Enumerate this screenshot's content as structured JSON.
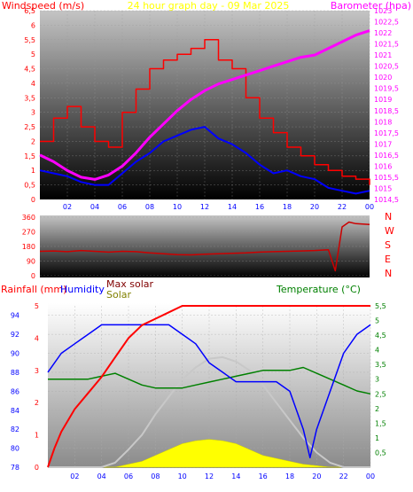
{
  "chart_data": [
    {
      "type": "line",
      "title": "24 hour graph day - 09 Mar 2025",
      "left_axis_label": "Windspeed (m/s)",
      "right_axis_label": "Barometer (hpa)",
      "left_ticks": [
        "0",
        "0,5",
        "1",
        "1,5",
        "2",
        "2,5",
        "3",
        "3,5",
        "4",
        "4,5",
        "5",
        "5,5",
        "6",
        "6,5"
      ],
      "right_ticks": [
        "1014,5",
        "1015",
        "1015,5",
        "1016",
        "1016,5",
        "1017",
        "1017,5",
        "1018",
        "1018,5",
        "1019",
        "1019,5",
        "1020",
        "1020,5",
        "1021",
        "1021,5",
        "1022",
        "1022,5",
        "1023"
      ],
      "x_ticks": [
        "02",
        "04",
        "06",
        "08",
        "10",
        "12",
        "14",
        "16",
        "18",
        "20",
        "22",
        "00"
      ],
      "ylim_left": [
        0,
        6.5
      ],
      "ylim_right": [
        1014.5,
        1023
      ],
      "colors": {
        "gust": "#ff0000",
        "wind": "#0000ff",
        "barometer": "#ff00ff"
      },
      "series": [
        {
          "axis": "left",
          "x": [
            0,
            1,
            2,
            3,
            4,
            5,
            6,
            7,
            8,
            9,
            10,
            11,
            12,
            13,
            14,
            15,
            16,
            17,
            18,
            19,
            20,
            21,
            22,
            23,
            24
          ],
          "values": [
            1.0,
            0.9,
            0.8,
            0.6,
            0.5,
            0.5,
            0.9,
            1.3,
            1.6,
            2.0,
            2.2,
            2.4,
            2.5,
            2.1,
            1.9,
            1.6,
            1.2,
            0.9,
            1.0,
            0.8,
            0.7,
            0.4,
            0.3,
            0.2,
            0.3
          ]
        },
        {
          "axis": "left",
          "x": [
            0,
            1,
            2,
            3,
            4,
            5,
            6,
            7,
            8,
            9,
            10,
            11,
            12,
            13,
            14,
            15,
            16,
            17,
            18,
            19,
            20,
            21,
            22,
            23,
            24
          ],
          "values": [
            2.0,
            2.8,
            3.2,
            2.5,
            2.0,
            1.8,
            3.0,
            3.8,
            4.5,
            4.8,
            5.0,
            5.2,
            5.5,
            4.8,
            4.5,
            3.5,
            2.8,
            2.3,
            1.8,
            1.5,
            1.2,
            1.0,
            0.8,
            0.7,
            0.5
          ]
        },
        {
          "axis": "right",
          "x": [
            0,
            1,
            2,
            3,
            4,
            5,
            6,
            7,
            8,
            9,
            10,
            11,
            12,
            13,
            14,
            15,
            16,
            17,
            18,
            19,
            20,
            21,
            22,
            23,
            24
          ],
          "values": [
            1016.5,
            1016.2,
            1015.8,
            1015.5,
            1015.4,
            1015.6,
            1016.0,
            1016.6,
            1017.3,
            1017.9,
            1018.5,
            1019.0,
            1019.4,
            1019.7,
            1019.9,
            1020.1,
            1020.3,
            1020.5,
            1020.7,
            1020.9,
            1021.0,
            1021.3,
            1021.6,
            1021.9,
            1022.1
          ]
        }
      ]
    },
    {
      "type": "line",
      "left_ticks": [
        "0",
        "90",
        "180",
        "270",
        "360"
      ],
      "right_labels": [
        "N",
        "W",
        "S",
        "E",
        "N"
      ],
      "ylim": [
        0,
        360
      ],
      "colors": {
        "direction": "#cc0000"
      },
      "x": [
        0,
        1,
        2,
        3,
        4,
        5,
        6,
        7,
        8,
        9,
        10,
        11,
        12,
        13,
        14,
        15,
        16,
        17,
        18,
        19,
        20,
        21,
        21.5,
        22,
        22.5,
        23,
        24
      ],
      "values": [
        150,
        152,
        148,
        155,
        150,
        145,
        150,
        148,
        140,
        135,
        130,
        128,
        132,
        135,
        138,
        140,
        145,
        148,
        150,
        152,
        155,
        160,
        30,
        300,
        330,
        320,
        315
      ]
    },
    {
      "type": "line",
      "legend": [
        "Rainfall (mm)",
        "Humidity",
        "Max solar",
        "Solar",
        "Temperature (°C)"
      ],
      "rainfall_ticks": [
        "0",
        "1",
        "2",
        "3",
        "4",
        "5"
      ],
      "humidity_ticks": [
        "78",
        "80",
        "82",
        "84",
        "86",
        "88",
        "90",
        "92",
        "94"
      ],
      "temperature_ticks": [
        "0,5",
        "1",
        "1,5",
        "2",
        "2,5",
        "3",
        "3,5",
        "4",
        "4,5",
        "5",
        "5,5"
      ],
      "x_ticks": [
        "02",
        "04",
        "06",
        "08",
        "10",
        "12",
        "14",
        "16",
        "18",
        "20",
        "22",
        "00"
      ],
      "ylim_rain": [
        0,
        5
      ],
      "ylim_humidity": [
        78,
        95
      ],
      "ylim_temperature": [
        0,
        5.5
      ],
      "colors": {
        "rain": "#ff0000",
        "humidity": "#0000ff",
        "max_solar": "#c8c8c8",
        "solar": "#ffff00",
        "temperature": "#008000"
      },
      "series": [
        {
          "name": "Rainfall (mm)",
          "x": [
            0,
            0.5,
            1,
            2,
            3,
            4,
            5,
            6,
            7,
            8,
            9,
            10,
            24
          ],
          "values": [
            0,
            0.6,
            1.1,
            1.8,
            2.3,
            2.8,
            3.4,
            4.0,
            4.4,
            4.6,
            4.8,
            5.0,
            5.0
          ]
        },
        {
          "name": "Humidity",
          "x": [
            0,
            1,
            2,
            3,
            4,
            5,
            6,
            7,
            8,
            9,
            10,
            11,
            12,
            13,
            14,
            15,
            16,
            17,
            18,
            19,
            19.5,
            20,
            21,
            22,
            23,
            24
          ],
          "values": [
            88,
            90,
            91,
            92,
            93,
            93,
            93,
            93,
            93,
            93,
            92,
            91,
            89,
            88,
            87,
            87,
            87,
            87,
            86,
            82,
            79,
            82,
            86,
            90,
            92,
            93
          ]
        },
        {
          "name": "Max solar",
          "x": [
            0,
            4,
            5,
            6,
            7,
            8,
            9,
            10,
            11,
            12,
            13,
            14,
            15,
            16,
            17,
            18,
            19,
            20,
            21,
            22,
            24
          ],
          "values": [
            0,
            0,
            0.15,
            0.6,
            1.1,
            1.8,
            2.4,
            3.0,
            3.4,
            3.7,
            3.75,
            3.6,
            3.3,
            2.8,
            2.2,
            1.6,
            1.0,
            0.5,
            0.15,
            0,
            0
          ]
        },
        {
          "name": "Solar",
          "x": [
            0,
            5,
            6,
            7,
            8,
            9,
            10,
            11,
            12,
            13,
            14,
            15,
            16,
            17,
            18,
            19,
            20,
            21,
            22,
            24
          ],
          "values": [
            0,
            0,
            0.1,
            0.2,
            0.4,
            0.6,
            0.8,
            0.9,
            0.95,
            0.9,
            0.8,
            0.6,
            0.4,
            0.3,
            0.2,
            0.1,
            0.05,
            0,
            0,
            0
          ]
        },
        {
          "name": "Temperature (°C)",
          "x": [
            0,
            1,
            2,
            3,
            4,
            5,
            6,
            7,
            8,
            9,
            10,
            11,
            12,
            13,
            14,
            15,
            16,
            17,
            18,
            19,
            20,
            21,
            22,
            23,
            24
          ],
          "values": [
            3.0,
            3.0,
            3.0,
            3.0,
            3.1,
            3.2,
            3.0,
            2.8,
            2.7,
            2.7,
            2.7,
            2.8,
            2.9,
            3.0,
            3.1,
            3.2,
            3.3,
            3.3,
            3.3,
            3.4,
            3.2,
            3.0,
            2.8,
            2.6,
            2.5
          ]
        }
      ]
    }
  ]
}
